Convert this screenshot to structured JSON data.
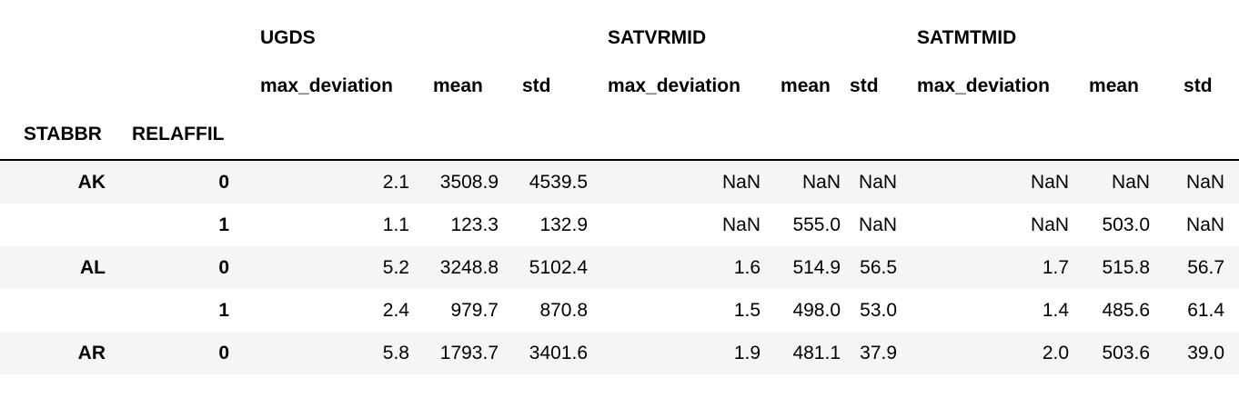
{
  "groups": [
    "UGDS",
    "SATVRMID",
    "SATMTMID"
  ],
  "stats": [
    "max_deviation",
    "mean",
    "std",
    "max_deviation",
    "mean",
    "std",
    "max_deviation",
    "mean",
    "std"
  ],
  "index_names": [
    "STABBR",
    "RELAFFIL"
  ],
  "rows": [
    {
      "stabbr": "AK",
      "relaffil": "0",
      "values": [
        "2.1",
        "3508.9",
        "4539.5",
        "NaN",
        "NaN",
        "NaN",
        "NaN",
        "NaN",
        "NaN"
      ]
    },
    {
      "stabbr": "",
      "relaffil": "1",
      "values": [
        "1.1",
        "123.3",
        "132.9",
        "NaN",
        "555.0",
        "NaN",
        "NaN",
        "503.0",
        "NaN"
      ]
    },
    {
      "stabbr": "AL",
      "relaffil": "0",
      "values": [
        "5.2",
        "3248.8",
        "5102.4",
        "1.6",
        "514.9",
        "56.5",
        "1.7",
        "515.8",
        "56.7"
      ]
    },
    {
      "stabbr": "",
      "relaffil": "1",
      "values": [
        "2.4",
        "979.7",
        "870.8",
        "1.5",
        "498.0",
        "53.0",
        "1.4",
        "485.6",
        "61.4"
      ]
    },
    {
      "stabbr": "AR",
      "relaffil": "0",
      "values": [
        "5.8",
        "1793.7",
        "3401.6",
        "1.9",
        "481.1",
        "37.9",
        "2.0",
        "503.6",
        "39.0"
      ]
    }
  ]
}
